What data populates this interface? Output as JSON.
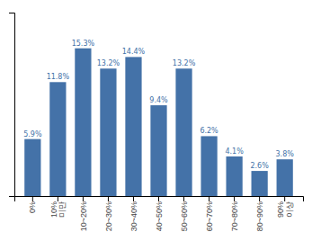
{
  "chart_data": {
    "type": "bar",
    "categories": [
      "0%",
      "10%\n미만",
      "10~20%",
      "20~30%",
      "30~40%",
      "40~50%",
      "50~60%",
      "60~70%",
      "70~80%",
      "80~90%",
      "90%\n이상"
    ],
    "values": [
      5.9,
      11.8,
      15.3,
      13.2,
      14.4,
      9.4,
      13.2,
      6.2,
      4.1,
      2.6,
      3.8
    ],
    "value_labels": [
      "5.9%",
      "11.8%",
      "15.3%",
      "13.2%",
      "14.4%",
      "9.4%",
      "13.2%",
      "6.2%",
      "4.1%",
      "2.6%",
      "3.8%"
    ],
    "data_labels": true,
    "color": "#4472a8",
    "ylim": [
      0,
      19
    ],
    "yticks": [],
    "tick_labels": "x",
    "grid": false
  }
}
